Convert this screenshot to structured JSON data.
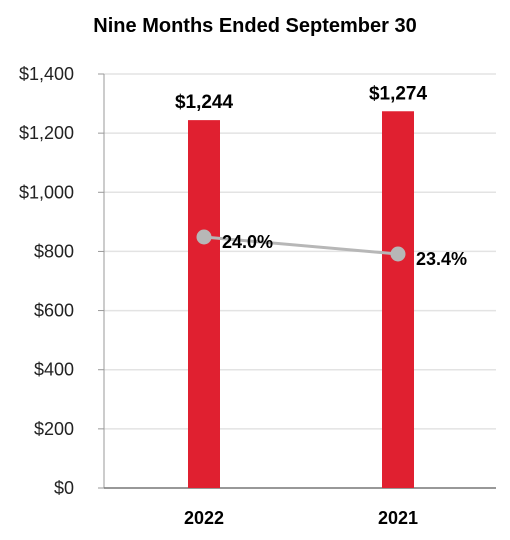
{
  "chart_data": {
    "type": "bar",
    "title": "Nine Months Ended September 30",
    "categories": [
      "2022",
      "2021"
    ],
    "values": [
      1244,
      1274
    ],
    "value_labels": [
      "$1,244",
      "$1,274"
    ],
    "ylim": [
      0,
      1400
    ],
    "yticks": [
      0,
      200,
      400,
      600,
      800,
      1000,
      1200,
      1400
    ],
    "ytick_labels": [
      "$0",
      "$200",
      "$400",
      "$600",
      "$800",
      "$1,000",
      "$1,200",
      "$1,400"
    ],
    "xlabel": "",
    "ylabel": "",
    "grid": true,
    "bar_color": "#e02030",
    "line_series": {
      "type": "line",
      "values": [
        24.0,
        23.4
      ],
      "value_labels": [
        "24.0%",
        "23.4%"
      ],
      "color": "#b7b7b7"
    }
  }
}
